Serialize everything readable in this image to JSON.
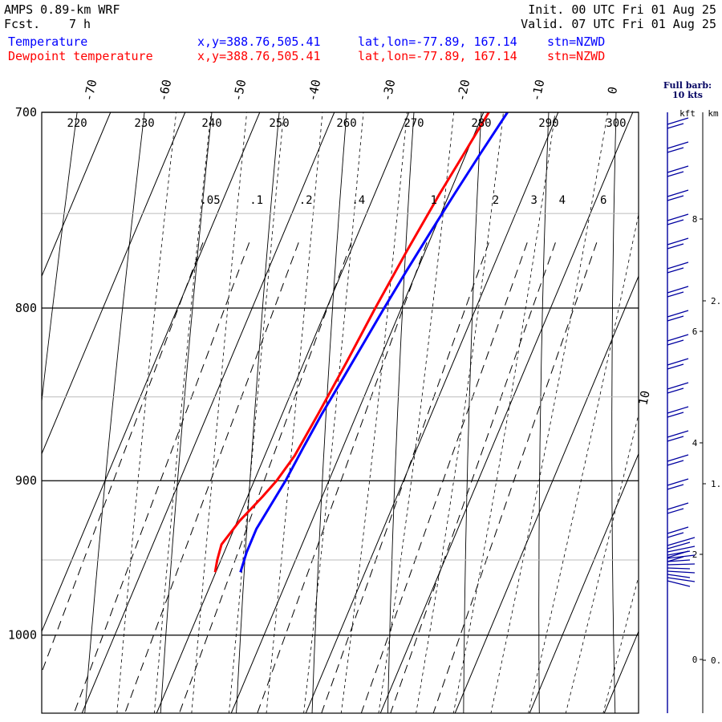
{
  "header": {
    "model": "AMPS 0.89-km WRF",
    "fcst_label": "Fcst.",
    "fcst_value": "7 h",
    "init": "Init. 00 UTC Fri 01 Aug 25",
    "valid": "Valid. 07 UTC Fri 01 Aug 25",
    "legend": [
      {
        "label": "Temperature",
        "xy": "x,y=388.76,505.41",
        "latlon": "lat,lon=-77.89, 167.14",
        "stn": "stn=NZWD",
        "color": "#0000ff"
      },
      {
        "label": "Dewpoint temperature",
        "xy": "x,y=388.76,505.41",
        "latlon": "lat,lon=-77.89, 167.14",
        "stn": "stn=NZWD",
        "color": "#ff0000"
      }
    ]
  },
  "chart_data": {
    "type": "line",
    "chart_kind": "skew-T log-p diagram",
    "pressure_levels": [
      700,
      800,
      900,
      1000
    ],
    "pressure_labels": [
      "700",
      "800",
      "900",
      "1000"
    ],
    "ylim_hpa": [
      1045,
      700
    ],
    "isotherm_labels": [
      "-70",
      "-60",
      "-50",
      "-40",
      "-30",
      "-20",
      "-10",
      "0",
      "10"
    ],
    "dry_adiabat_labels": [
      "220",
      "230",
      "240",
      "250",
      "260",
      "270",
      "280",
      "290",
      "300"
    ],
    "mixing_ratio_labels": [
      ".05",
      ".1",
      ".2",
      ".4",
      "1",
      "2",
      "3",
      "4",
      "6"
    ],
    "series": [
      {
        "name": "Temperature",
        "color": "#0000ff",
        "points": [
          {
            "p": 958,
            "t": -26.7
          },
          {
            "p": 945,
            "t": -27.0
          },
          {
            "p": 930,
            "t": -27.0
          },
          {
            "p": 915,
            "t": -26.4
          },
          {
            "p": 900,
            "t": -25.8
          },
          {
            "p": 880,
            "t": -25.3
          },
          {
            "p": 860,
            "t": -24.7
          },
          {
            "p": 840,
            "t": -23.9
          },
          {
            "p": 820,
            "t": -23.1
          },
          {
            "p": 800,
            "t": -22.3
          },
          {
            "p": 780,
            "t": -21.4
          },
          {
            "p": 760,
            "t": -20.4
          },
          {
            "p": 740,
            "t": -19.3
          },
          {
            "p": 720,
            "t": -18.1
          },
          {
            "p": 700,
            "t": -16.8
          }
        ]
      },
      {
        "name": "Dewpoint temperature",
        "color": "#ff0000",
        "points": [
          {
            "p": 958,
            "t": -30.1
          },
          {
            "p": 950,
            "t": -30.5
          },
          {
            "p": 940,
            "t": -30.8
          },
          {
            "p": 925,
            "t": -29.7
          },
          {
            "p": 910,
            "t": -28.0
          },
          {
            "p": 900,
            "t": -27.0
          },
          {
            "p": 885,
            "t": -26.0
          },
          {
            "p": 860,
            "t": -25.2
          },
          {
            "p": 830,
            "t": -24.3
          },
          {
            "p": 800,
            "t": -23.5
          },
          {
            "p": 770,
            "t": -22.5
          },
          {
            "p": 740,
            "t": -21.3
          },
          {
            "p": 720,
            "t": -20.3
          },
          {
            "p": 700,
            "t": -19.3
          }
        ]
      }
    ],
    "grid": true
  },
  "wind_panel": {
    "title_line1": "Full barb:",
    "title_line2": "10 kts",
    "kft_label": "kft",
    "km_label": "km",
    "kft_ticks": [
      "8",
      "6",
      "4",
      "2",
      "0"
    ],
    "km_ticks": [
      "2.",
      "1.",
      "0."
    ],
    "line_color": "#0000a0"
  }
}
